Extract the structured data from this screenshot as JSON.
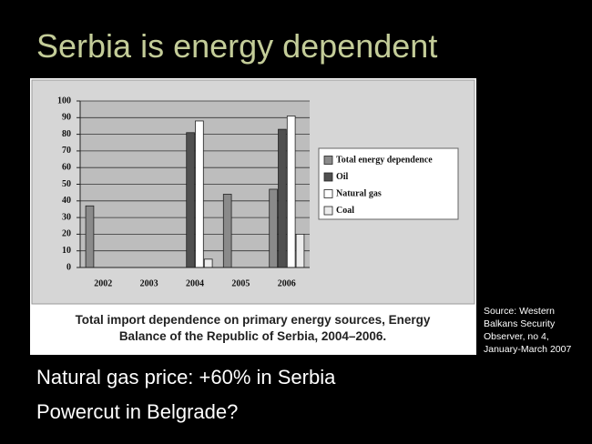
{
  "slide": {
    "title": "Serbia is energy dependent",
    "bullets": [
      "Natural gas price: +60% in Serbia",
      "Powercut in Belgrade?"
    ],
    "source_lines": [
      "Source: Western",
      "Balkans Security",
      "Observer, no 4,",
      "January-March 2007"
    ]
  },
  "chart_data": {
    "type": "bar",
    "caption": "Total import dependence on primary energy sources, Energy Balance of the Republic of Serbia, 2004–2006.",
    "categories": [
      "2002",
      "2003",
      "2004",
      "2005",
      "2006"
    ],
    "series": [
      {
        "name": "Total energy dependence",
        "color": "#8a8a8a",
        "values": [
          37,
          null,
          null,
          44,
          47
        ]
      },
      {
        "name": "Oil",
        "color": "#505050",
        "values": [
          null,
          null,
          81,
          null,
          83
        ]
      },
      {
        "name": "Natural gas",
        "color": "#ffffff",
        "values": [
          null,
          null,
          88,
          null,
          91
        ]
      },
      {
        "name": "Coal",
        "color": "#ececec",
        "values": [
          null,
          null,
          5,
          null,
          20
        ]
      }
    ],
    "ylim": [
      0,
      100
    ],
    "yticks": [
      0,
      10,
      20,
      30,
      40,
      50,
      60,
      70,
      80,
      90,
      100
    ],
    "grid": true,
    "legend": "right"
  }
}
